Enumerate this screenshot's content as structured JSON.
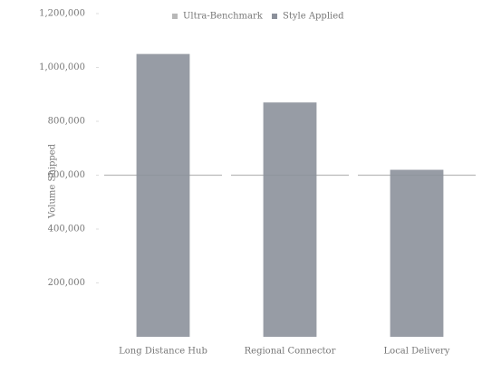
{
  "chart_data": {
    "type": "bar",
    "legend": [
      "Ultra-Benchmark",
      "Style Applied"
    ],
    "ylabel": "Volume Shipped",
    "categories": [
      "Long Distance Hub",
      "Regional Connector",
      "Local Delivery"
    ],
    "series": [
      {
        "name": "Style Applied",
        "color": "#8c919b",
        "values": [
          1050000,
          870000,
          620000
        ]
      },
      {
        "name": "Ultra-Benchmark",
        "color": "#b8b8b8",
        "kind": "benchmark",
        "values": [
          600000,
          600000,
          600000
        ]
      }
    ],
    "ylim": [
      0,
      1200000
    ],
    "yticks": [
      {
        "value": 200000,
        "label": "200,000"
      },
      {
        "value": 400000,
        "label": "400,000"
      },
      {
        "value": 600000,
        "label": "600,000"
      },
      {
        "value": 800000,
        "label": "800,000"
      },
      {
        "value": 1000000,
        "label": "1,000,000"
      },
      {
        "value": 1200000,
        "label": "1,200,000"
      }
    ],
    "grid": false
  }
}
